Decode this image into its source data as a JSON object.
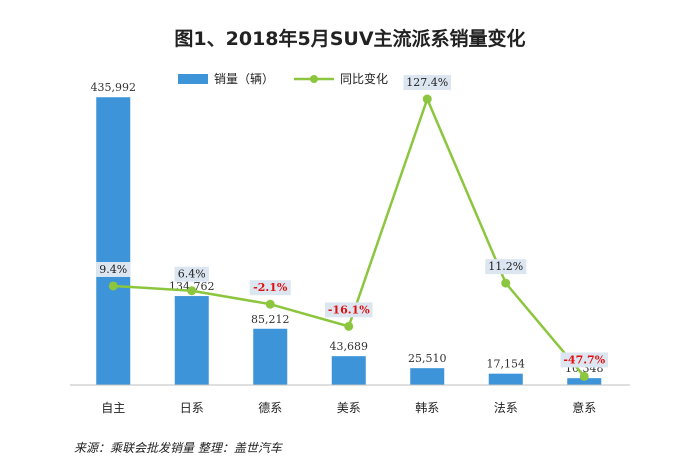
{
  "chart_data": {
    "type": "bar",
    "title": "图1、2018年5月SUV主流派系销量变化",
    "categories": [
      "自主",
      "日系",
      "德系",
      "美系",
      "韩系",
      "法系",
      "意系"
    ],
    "series": [
      {
        "name": "销量（辆）",
        "type": "bar",
        "values": [
          435992,
          134762,
          85212,
          43689,
          25510,
          17154,
          10348
        ],
        "labels": [
          "435,992",
          "134,762",
          "85,212",
          "43,689",
          "25,510",
          "17,154",
          "10,348"
        ]
      },
      {
        "name": "同比变化",
        "type": "line",
        "values": [
          9.4,
          6.4,
          -2.1,
          -16.1,
          127.4,
          11.2,
          -47.7
        ],
        "labels": [
          "9.4%",
          "6.4%",
          "-2.1%",
          "-16.1%",
          "127.4%",
          "11.2%",
          "-47.7%"
        ]
      }
    ],
    "bar_ylim": [
      0,
      450000
    ],
    "line_ylim": [
      -55,
      135
    ],
    "grid": false,
    "legend_position": "top-center",
    "colors": {
      "bar": "#3d94d9",
      "line": "#8cc63f",
      "negative_label": "#e01010",
      "label_bg": "#dce6f1"
    },
    "source": "来源：乘联会批发销量   整理：盖世汽车"
  }
}
